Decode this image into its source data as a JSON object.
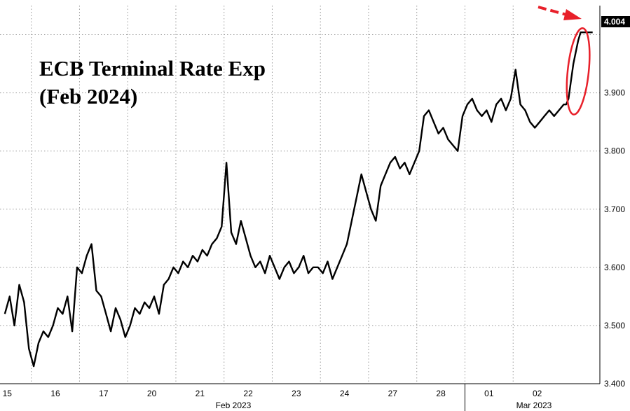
{
  "chart_data": {
    "type": "line",
    "title": "ECB Terminal Rate Exp",
    "subtitle": "(Feb 2024)",
    "xlabel": "",
    "ylabel": "",
    "ylim": [
      3.4,
      4.05
    ],
    "y_ticks": [
      "3.400",
      "3.500",
      "3.600",
      "3.700",
      "3.800",
      "3.900"
    ],
    "y_tick_values": [
      3.4,
      3.5,
      3.6,
      3.7,
      3.8,
      3.9
    ],
    "grid": true,
    "x_ticks": [
      "15",
      "16",
      "17",
      "20",
      "21",
      "22",
      "23",
      "24",
      "27",
      "28",
      "01",
      "02"
    ],
    "x_groups": [
      "Feb 2023",
      "Mar 2023"
    ],
    "last_value_label": "4.004",
    "colors": {
      "series": "#000000",
      "highlight": "#e8202a",
      "last_label_bg": "#000000"
    },
    "annotation": {
      "type": "ellipse-and-arrow",
      "target": "last-spike"
    },
    "series": [
      {
        "x": [
          0,
          0.1,
          0.2,
          0.3,
          0.4,
          0.5,
          0.6,
          0.7,
          0.8,
          0.9,
          1.0,
          1.1,
          1.2,
          1.3,
          1.4,
          1.5,
          1.6,
          1.7,
          1.8,
          1.9,
          2.0,
          2.1,
          2.2,
          2.3,
          2.4,
          2.5,
          2.6,
          2.7,
          2.8,
          2.9,
          3.0,
          3.1,
          3.2,
          3.3,
          3.4,
          3.5,
          3.6,
          3.7,
          3.8,
          3.9,
          4.0,
          4.1,
          4.2,
          4.3,
          4.4,
          4.5,
          4.6,
          4.7,
          4.8,
          4.9,
          5.0,
          5.1,
          5.2,
          5.3,
          5.4,
          5.5,
          5.6,
          5.7,
          5.8,
          5.9,
          6.0,
          6.1,
          6.2,
          6.3,
          6.4,
          6.5,
          6.6,
          6.7,
          6.8,
          6.9,
          7.0,
          7.1,
          7.2,
          7.3,
          7.4,
          7.5,
          7.6,
          7.7,
          7.8,
          7.9,
          8.0,
          8.1,
          8.2,
          8.3,
          8.4,
          8.5,
          8.6,
          8.7,
          8.8,
          8.9,
          9.0,
          9.1,
          9.2,
          9.3,
          9.4,
          9.5,
          9.6,
          9.7,
          9.8,
          9.9,
          10.0,
          10.1,
          10.2,
          10.3,
          10.4,
          10.5,
          10.6,
          10.7,
          10.8,
          10.9,
          11.0,
          11.1,
          11.2,
          11.3,
          11.4,
          11.5,
          11.6,
          11.65,
          11.7,
          11.75,
          11.8,
          11.85,
          11.9,
          11.95,
          12.0,
          12.05,
          12.1,
          12.15,
          12.2
        ],
        "values": [
          3.52,
          3.55,
          3.5,
          3.57,
          3.54,
          3.46,
          3.43,
          3.47,
          3.49,
          3.48,
          3.5,
          3.53,
          3.52,
          3.55,
          3.49,
          3.6,
          3.59,
          3.62,
          3.64,
          3.56,
          3.55,
          3.52,
          3.49,
          3.53,
          3.51,
          3.48,
          3.5,
          3.53,
          3.52,
          3.54,
          3.53,
          3.55,
          3.52,
          3.57,
          3.58,
          3.6,
          3.59,
          3.61,
          3.6,
          3.62,
          3.61,
          3.63,
          3.62,
          3.64,
          3.65,
          3.67,
          3.78,
          3.66,
          3.64,
          3.68,
          3.65,
          3.62,
          3.6,
          3.61,
          3.59,
          3.62,
          3.6,
          3.58,
          3.6,
          3.61,
          3.59,
          3.6,
          3.62,
          3.59,
          3.6,
          3.6,
          3.59,
          3.61,
          3.58,
          3.6,
          3.62,
          3.64,
          3.68,
          3.72,
          3.76,
          3.73,
          3.7,
          3.68,
          3.74,
          3.76,
          3.78,
          3.79,
          3.77,
          3.78,
          3.76,
          3.78,
          3.8,
          3.86,
          3.87,
          3.85,
          3.83,
          3.84,
          3.82,
          3.81,
          3.8,
          3.86,
          3.88,
          3.89,
          3.87,
          3.86,
          3.87,
          3.85,
          3.88,
          3.89,
          3.87,
          3.89,
          3.94,
          3.88,
          3.87,
          3.85,
          3.84,
          3.85,
          3.86,
          3.87,
          3.86,
          3.87,
          3.88,
          3.88,
          3.89,
          3.92,
          3.95,
          3.97,
          3.99,
          4.004,
          4.004,
          4.004,
          4.004,
          4.004,
          4.004
        ]
      }
    ]
  }
}
